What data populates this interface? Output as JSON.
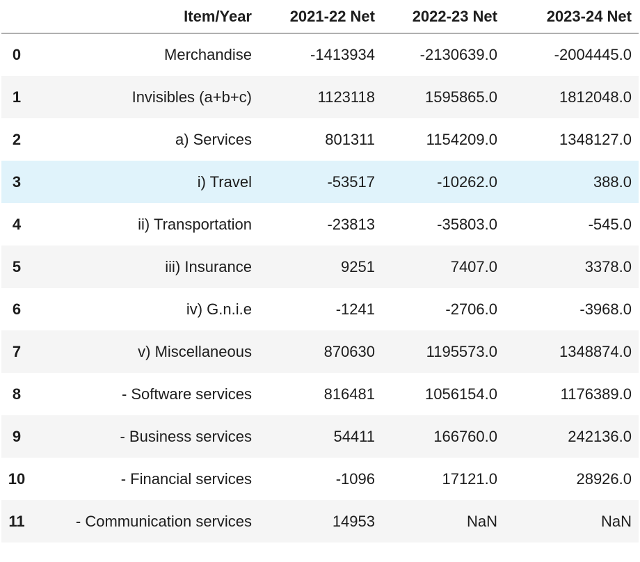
{
  "colors": {
    "row_stripe": "#f5f5f5",
    "row_hover_highlight": "#e0f3fb",
    "header_border": "#b0b0b0",
    "text": "#1d1d1d",
    "background": "#ffffff"
  },
  "chart_data": {
    "type": "table",
    "title": "",
    "index_header": "",
    "columns": [
      "Item/Year",
      "2021-22 Net",
      "2022-23 Net",
      "2023-24 Net"
    ],
    "index": [
      "0",
      "1",
      "2",
      "3",
      "4",
      "5",
      "6",
      "7",
      "8",
      "9",
      "10",
      "11"
    ],
    "rows": [
      [
        "Merchandise",
        "-1413934",
        "-2130639.0",
        "-2004445.0"
      ],
      [
        "Invisibles (a+b+c)",
        "1123118",
        "1595865.0",
        "1812048.0"
      ],
      [
        "a) Services",
        "801311",
        "1154209.0",
        "1348127.0"
      ],
      [
        "i) Travel",
        "-53517",
        "-10262.0",
        "388.0"
      ],
      [
        "ii) Transportation",
        "-23813",
        "-35803.0",
        "-545.0"
      ],
      [
        "iii) Insurance",
        "9251",
        "7407.0",
        "3378.0"
      ],
      [
        "iv) G.n.i.e",
        "-1241",
        "-2706.0",
        "-3968.0"
      ],
      [
        "v) Miscellaneous",
        "870630",
        "1195573.0",
        "1348874.0"
      ],
      [
        "- Software services",
        "816481",
        "1056154.0",
        "1176389.0"
      ],
      [
        "- Business services",
        "54411",
        "166760.0",
        "242136.0"
      ],
      [
        "- Financial services",
        "-1096",
        "17121.0",
        "28926.0"
      ],
      [
        "- Communication services",
        "14953",
        "NaN",
        "NaN"
      ]
    ],
    "highlighted_row_index": 3,
    "layout": {
      "grid": false,
      "stripes": "even-rows",
      "value_alignment": "right"
    }
  }
}
